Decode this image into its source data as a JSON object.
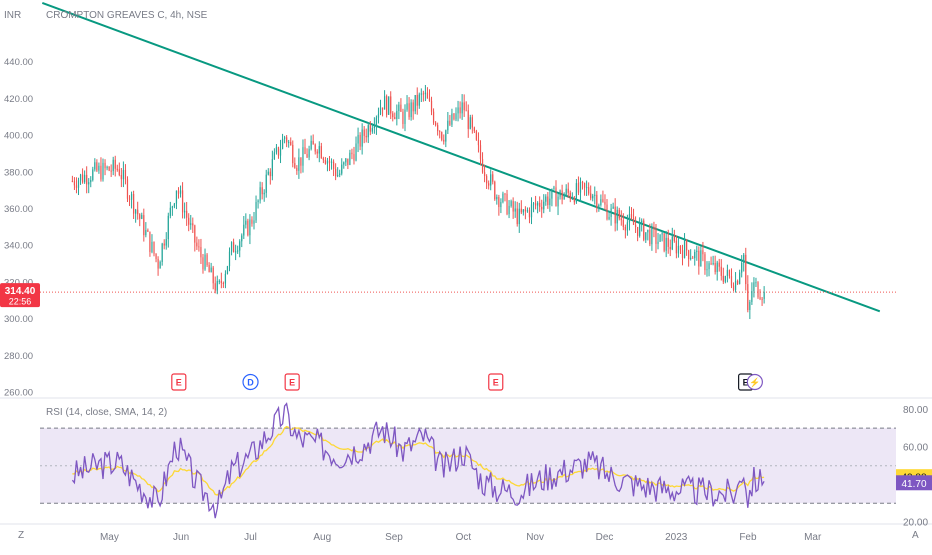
{
  "header": {
    "currency": "INR",
    "symbol_title": "CROMPTON GREAVES C, 4h, NSE"
  },
  "price_badge": {
    "price": "314.40",
    "countdown": "22:56",
    "color": "#f23645"
  },
  "rsi_header": "RSI (14, close, SMA, 14, 2)",
  "rsi_badges": {
    "ma_value": "43.88",
    "rsi_value": "41.70"
  },
  "corner_labels": {
    "left": "Z",
    "right": "A"
  },
  "colors": {
    "up": "#26a69a",
    "down": "#ef5350",
    "trendline": "#089981",
    "rsi_line": "#7e57c2",
    "rsi_ma": "#fdd835",
    "rsi_band": "#ede7f6"
  },
  "events": [
    {
      "label": "E",
      "type": "earnings",
      "x": "2022-05-31"
    },
    {
      "label": "D",
      "type": "dividend",
      "x": "2022-07-01"
    },
    {
      "label": "E",
      "type": "earnings",
      "x": "2022-07-19"
    },
    {
      "label": "E",
      "type": "earnings",
      "x": "2022-10-15"
    },
    {
      "label": "E",
      "type": "earnings",
      "x": "2023-01-31"
    },
    {
      "label": "⚡",
      "type": "split",
      "x": "2023-02-04"
    }
  ],
  "chart_data": [
    {
      "type": "candlestick",
      "title": "CROMPTON GREAVES C, 4h, NSE",
      "ylabel": "INR",
      "ylim": [
        260,
        460
      ],
      "yticks": [
        "440.00",
        "420.00",
        "400.00",
        "380.00",
        "360.00",
        "340.00",
        "320.00",
        "300.00",
        "280.00",
        "260.00"
      ],
      "xticks": [
        "May",
        "Jun",
        "Jul",
        "Aug",
        "Sep",
        "Oct",
        "Nov",
        "Dec",
        "2023",
        "Feb",
        "Mar"
      ],
      "x": [
        "2022-04-15",
        "2022-04-25",
        "2022-05-05",
        "2022-05-15",
        "2022-05-22",
        "2022-05-30",
        "2022-06-08",
        "2022-06-17",
        "2022-06-23",
        "2022-07-01",
        "2022-07-09",
        "2022-07-16",
        "2022-07-21",
        "2022-07-30",
        "2022-08-08",
        "2022-08-18",
        "2022-08-27",
        "2022-09-05",
        "2022-09-14",
        "2022-09-22",
        "2022-10-01",
        "2022-10-09",
        "2022-10-15",
        "2022-10-25",
        "2022-11-05",
        "2022-11-15",
        "2022-11-25",
        "2022-12-03",
        "2022-12-15",
        "2022-12-25",
        "2023-01-05",
        "2023-01-16",
        "2023-01-27",
        "2023-01-30",
        "2023-02-01",
        "2023-02-03",
        "2023-02-08"
      ],
      "close": [
        375,
        380,
        382,
        352,
        330,
        372,
        338,
        315,
        338,
        352,
        380,
        400,
        385,
        395,
        378,
        398,
        418,
        410,
        422,
        400,
        416,
        385,
        368,
        355,
        365,
        368,
        370,
        358,
        350,
        342,
        338,
        328,
        320,
        338,
        300,
        318,
        314.4
      ],
      "trendline": {
        "from": [
          "2022-04-02",
          472
        ],
        "to": [
          "2023-03-30",
          304
        ]
      },
      "last_price": 314.4
    },
    {
      "type": "line",
      "title": "RSI (14, close, SMA, 14, 2)",
      "ylim": [
        20,
        85
      ],
      "yticks": [
        "80.00",
        "60.00",
        "20.00"
      ],
      "bands": [
        30,
        70
      ],
      "series": [
        {
          "name": "RSI",
          "x": "same as price",
          "values": [
            45,
            50,
            52,
            38,
            30,
            62,
            40,
            28,
            48,
            55,
            68,
            78,
            65,
            62,
            55,
            60,
            70,
            58,
            66,
            48,
            58,
            42,
            38,
            36,
            44,
            48,
            52,
            45,
            40,
            38,
            37,
            36,
            35,
            50,
            32,
            42,
            41.7
          ]
        },
        {
          "name": "SMA",
          "values": [
            46,
            48,
            49,
            44,
            36,
            48,
            46,
            34,
            40,
            50,
            60,
            70,
            70,
            66,
            60,
            58,
            64,
            60,
            62,
            55,
            56,
            50,
            44,
            40,
            42,
            45,
            48,
            47,
            43,
            40,
            39,
            38,
            37,
            42,
            40,
            43.88,
            43.88
          ]
        }
      ]
    }
  ]
}
